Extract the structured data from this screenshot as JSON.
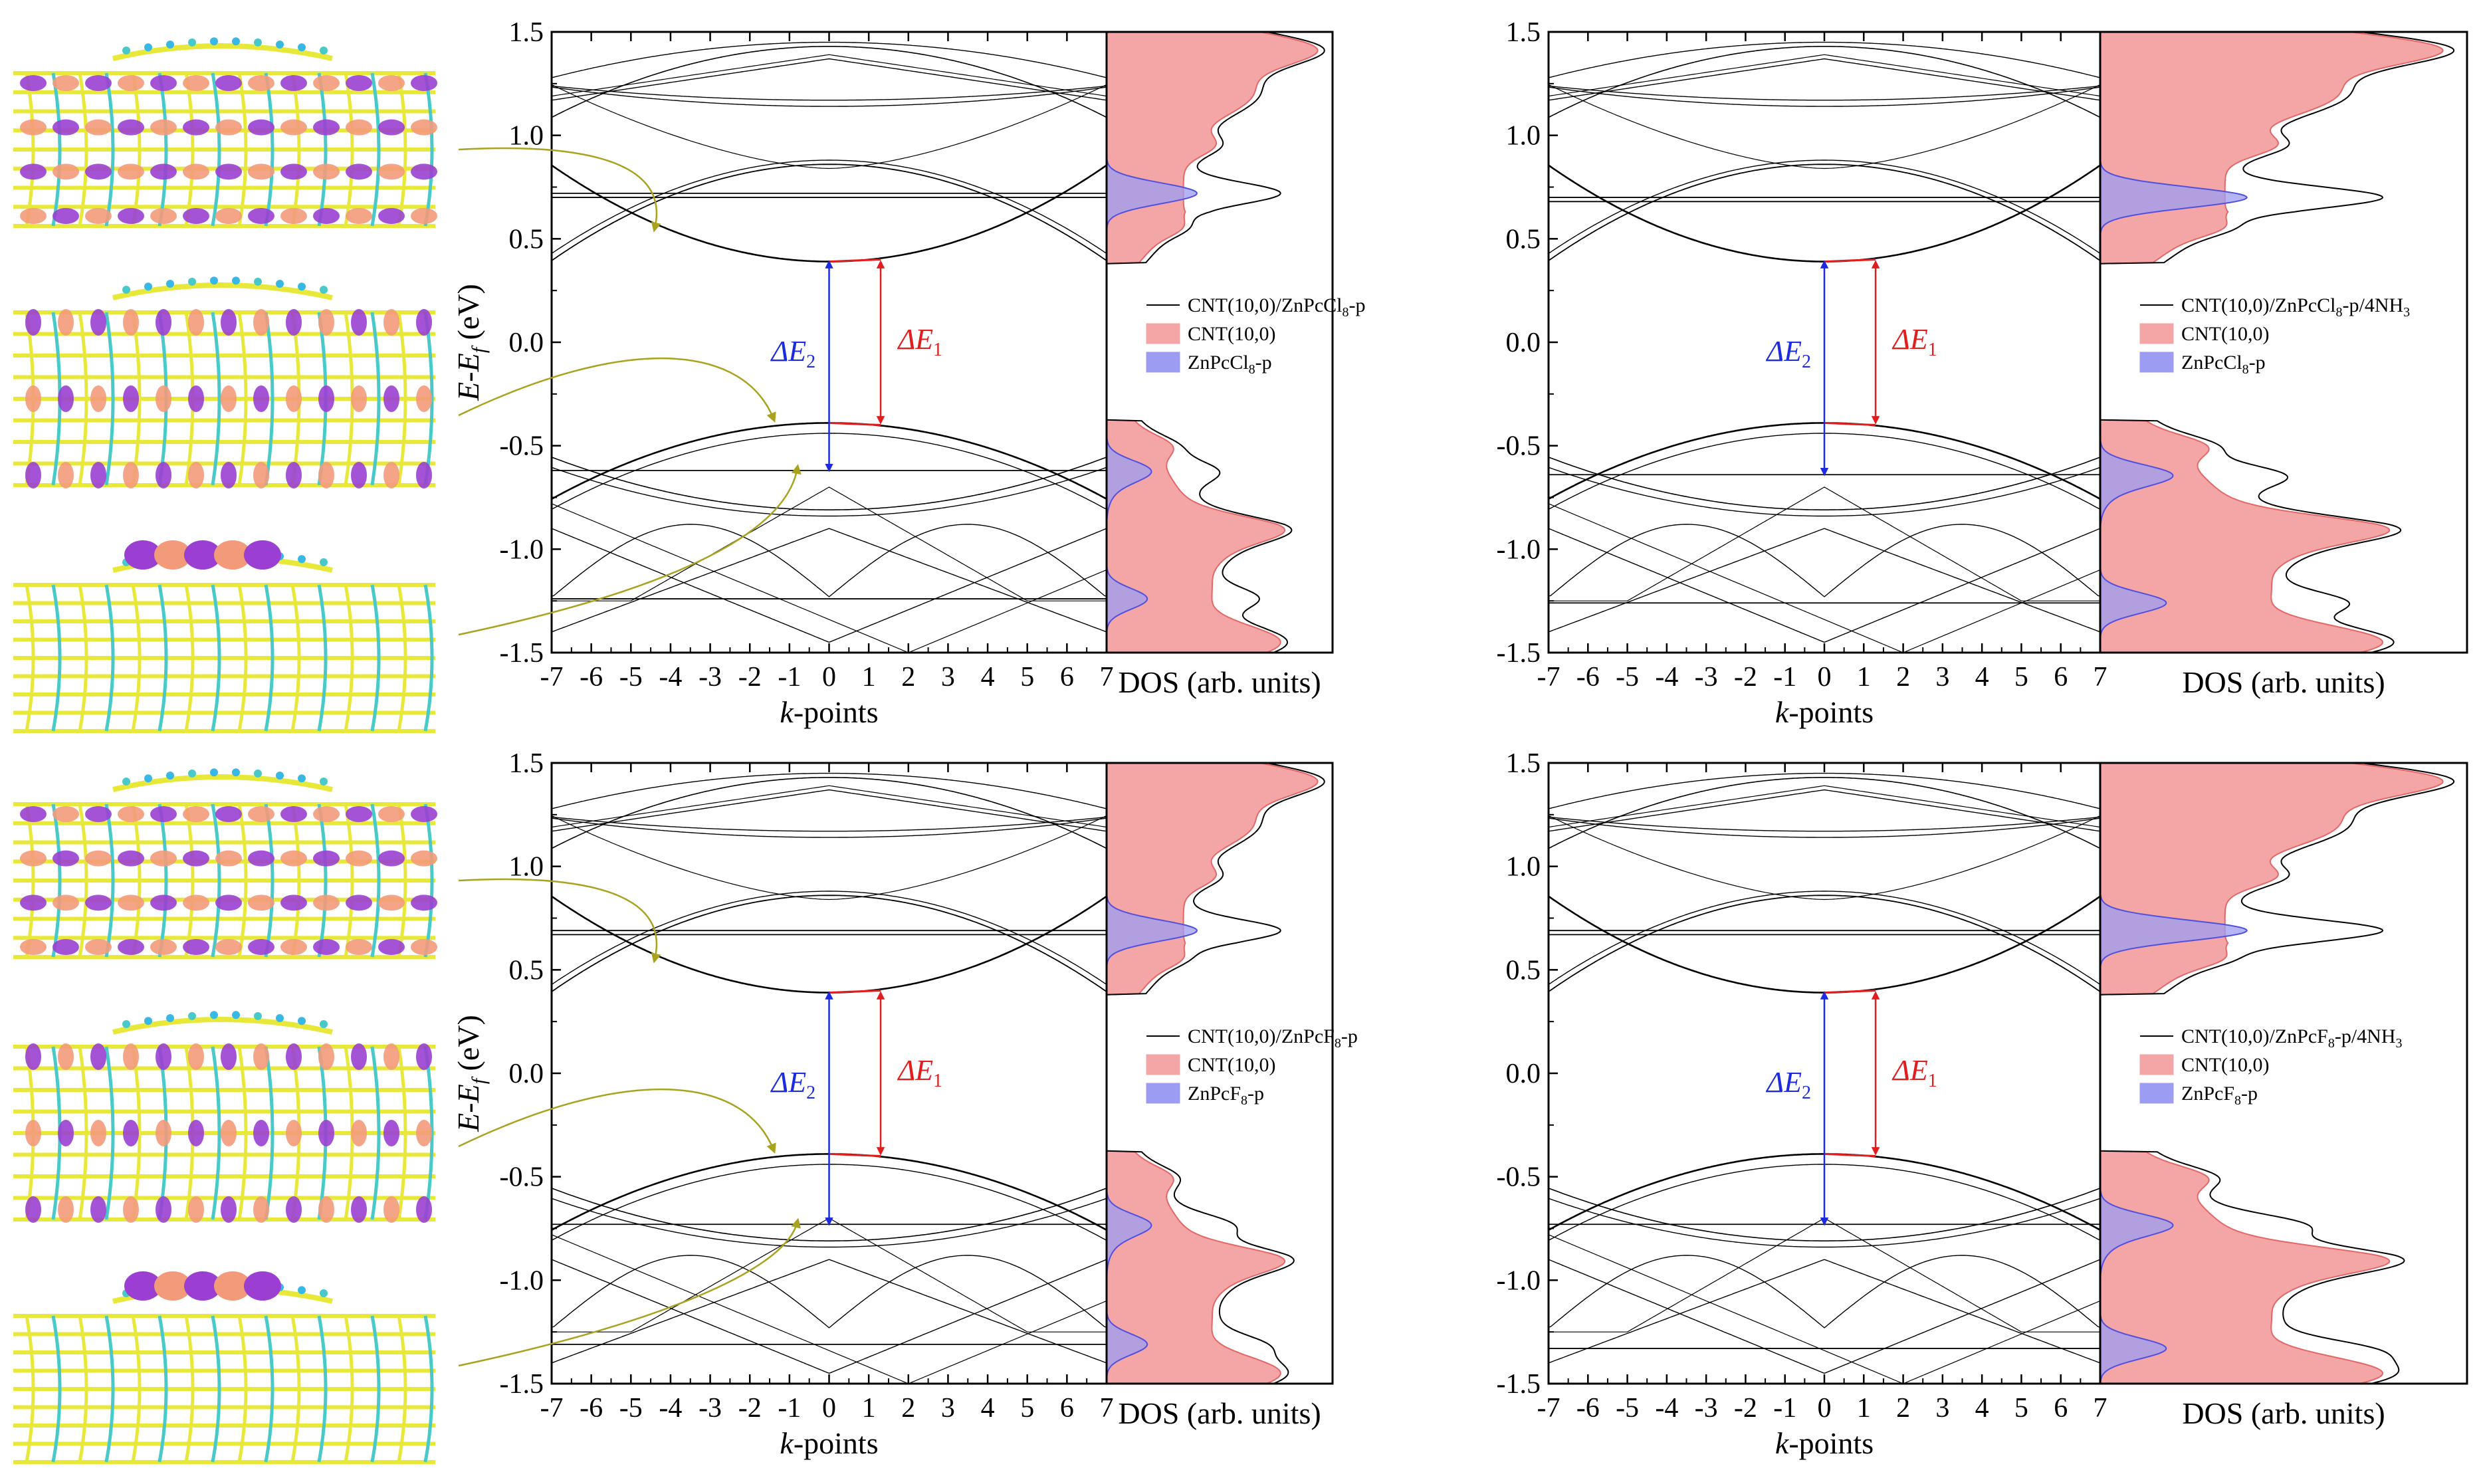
{
  "figure": {
    "colors": {
      "cnt_fill": "#f4a6a6",
      "cnt_edge": "#e36767",
      "znpc_fill": "#9c9cf2",
      "znpc_edge": "#4f4fe0",
      "gap_direct": "#e11d1d",
      "gap_indirect": "#1d2be0",
      "arrow": "#a8a21e",
      "carbon": "#e8e83a",
      "bond": "#49c9c9",
      "orbital_purple": "#9a3fd2",
      "orbital_salmon": "#f39a7a"
    }
  },
  "chart_data": [
    {
      "type": "line",
      "panel": "top-left",
      "xlabel": "k-points",
      "ylabel": "E-E_f (eV)",
      "xlim": [
        -7,
        7
      ],
      "ylim": [
        -1.5,
        1.5
      ],
      "xticks": [
        "-7",
        "-6",
        "-5",
        "-4",
        "-3",
        "-2",
        "-1",
        "0",
        "1",
        "2",
        "3",
        "4",
        "5",
        "6",
        "7"
      ],
      "yticks": [
        "-1.5",
        "-1.0",
        "-0.5",
        "0.0",
        "0.5",
        "1.0",
        "1.5"
      ],
      "cbm": 0.39,
      "vbm": -0.39,
      "flat_bands": [
        0.72,
        0.7,
        -0.62,
        -1.24
      ],
      "gap_labels": {
        "indirect": "ΔE",
        "indirect_sub": "2",
        "direct": "ΔE",
        "direct_sub": "1"
      },
      "indirect_gap_from": -0.62,
      "dos": {
        "xlabel": "DOS (arb. units)",
        "legend": {
          "total": "CNT(10,0)/ZnPcCl",
          "total_sub": "8",
          "total_suffix": "-p",
          "cnt": "CNT(10,0)",
          "znpc": "ZnPcCl",
          "znpc_sub": "8",
          "znpc_suffix": "-p"
        },
        "znpc_peaks": [
          0.72,
          -0.62,
          -1.24
        ]
      }
    },
    {
      "type": "line",
      "panel": "top-right",
      "xlabel": "k-points",
      "ylabel": "",
      "xlim": [
        -7,
        7
      ],
      "ylim": [
        -1.5,
        1.5
      ],
      "xticks": [
        "-7",
        "-6",
        "-5",
        "-4",
        "-3",
        "-2",
        "-1",
        "0",
        "1",
        "2",
        "3",
        "4",
        "5",
        "6",
        "7"
      ],
      "yticks": [
        "-1.5",
        "-1.0",
        "-0.5",
        "0.0",
        "0.5",
        "1.0",
        "1.5"
      ],
      "cbm": 0.39,
      "vbm": -0.39,
      "flat_bands": [
        0.7,
        0.68,
        -0.64,
        -1.26
      ],
      "gap_labels": {
        "indirect": "ΔE",
        "indirect_sub": "2",
        "direct": "ΔE",
        "direct_sub": "1"
      },
      "indirect_gap_from": -0.64,
      "dos": {
        "xlabel": "DOS (arb. units)",
        "legend": {
          "total": "CNT(10,0)/ZnPcCl",
          "total_sub": "8",
          "total_suffix": "-p/4NH",
          "total_sub2": "3",
          "cnt": "CNT(10,0)",
          "znpc": "ZnPcCl",
          "znpc_sub": "8",
          "znpc_suffix": "-p"
        },
        "znpc_peaks": [
          0.7,
          -0.64,
          -1.26
        ]
      }
    },
    {
      "type": "line",
      "panel": "bottom-left",
      "xlabel": "k-points",
      "ylabel": "E-E_f (eV)",
      "xlim": [
        -7,
        7
      ],
      "ylim": [
        -1.5,
        1.5
      ],
      "xticks": [
        "-7",
        "-6",
        "-5",
        "-4",
        "-3",
        "-2",
        "-1",
        "0",
        "1",
        "2",
        "3",
        "4",
        "5",
        "6",
        "7"
      ],
      "yticks": [
        "-1.5",
        "-1.0",
        "-0.5",
        "0.0",
        "0.5",
        "1.0",
        "1.5"
      ],
      "cbm": 0.39,
      "vbm": -0.39,
      "flat_bands": [
        0.69,
        0.67,
        -0.73,
        -1.31
      ],
      "gap_labels": {
        "indirect": "ΔE",
        "indirect_sub": "2",
        "direct": "ΔE",
        "direct_sub": "1"
      },
      "indirect_gap_from": -0.73,
      "dos": {
        "xlabel": "DOS (arb. units)",
        "legend": {
          "total": "CNT(10,0)/ZnPcF",
          "total_sub": "8",
          "total_suffix": "-p",
          "cnt": "CNT(10,0)",
          "znpc": "ZnPcF",
          "znpc_sub": "8",
          "znpc_suffix": "-p"
        },
        "znpc_peaks": [
          0.69,
          -0.73,
          -1.31
        ]
      }
    },
    {
      "type": "line",
      "panel": "bottom-right",
      "xlabel": "k-points",
      "ylabel": "",
      "xlim": [
        -7,
        7
      ],
      "ylim": [
        -1.5,
        1.5
      ],
      "xticks": [
        "-7",
        "-6",
        "-5",
        "-4",
        "-3",
        "-2",
        "-1",
        "0",
        "1",
        "2",
        "3",
        "4",
        "5",
        "6",
        "7"
      ],
      "yticks": [
        "-1.5",
        "-1.0",
        "-0.5",
        "0.0",
        "0.5",
        "1.0",
        "1.5"
      ],
      "cbm": 0.39,
      "vbm": -0.39,
      "flat_bands": [
        0.69,
        0.67,
        -0.73,
        -1.33
      ],
      "gap_labels": {
        "indirect": "ΔE",
        "indirect_sub": "2",
        "direct": "ΔE",
        "direct_sub": "1"
      },
      "indirect_gap_from": -0.73,
      "dos": {
        "xlabel": "DOS (arb. units)",
        "legend": {
          "total": "CNT(10,0)/ZnPcF",
          "total_sub": "8",
          "total_suffix": "-p/4NH",
          "total_sub2": "3",
          "cnt": "CNT(10,0)",
          "znpc": "ZnPcF",
          "znpc_sub": "8",
          "znpc_suffix": "-p"
        },
        "znpc_peaks": [
          0.69,
          -0.73,
          -1.33
        ]
      }
    }
  ]
}
